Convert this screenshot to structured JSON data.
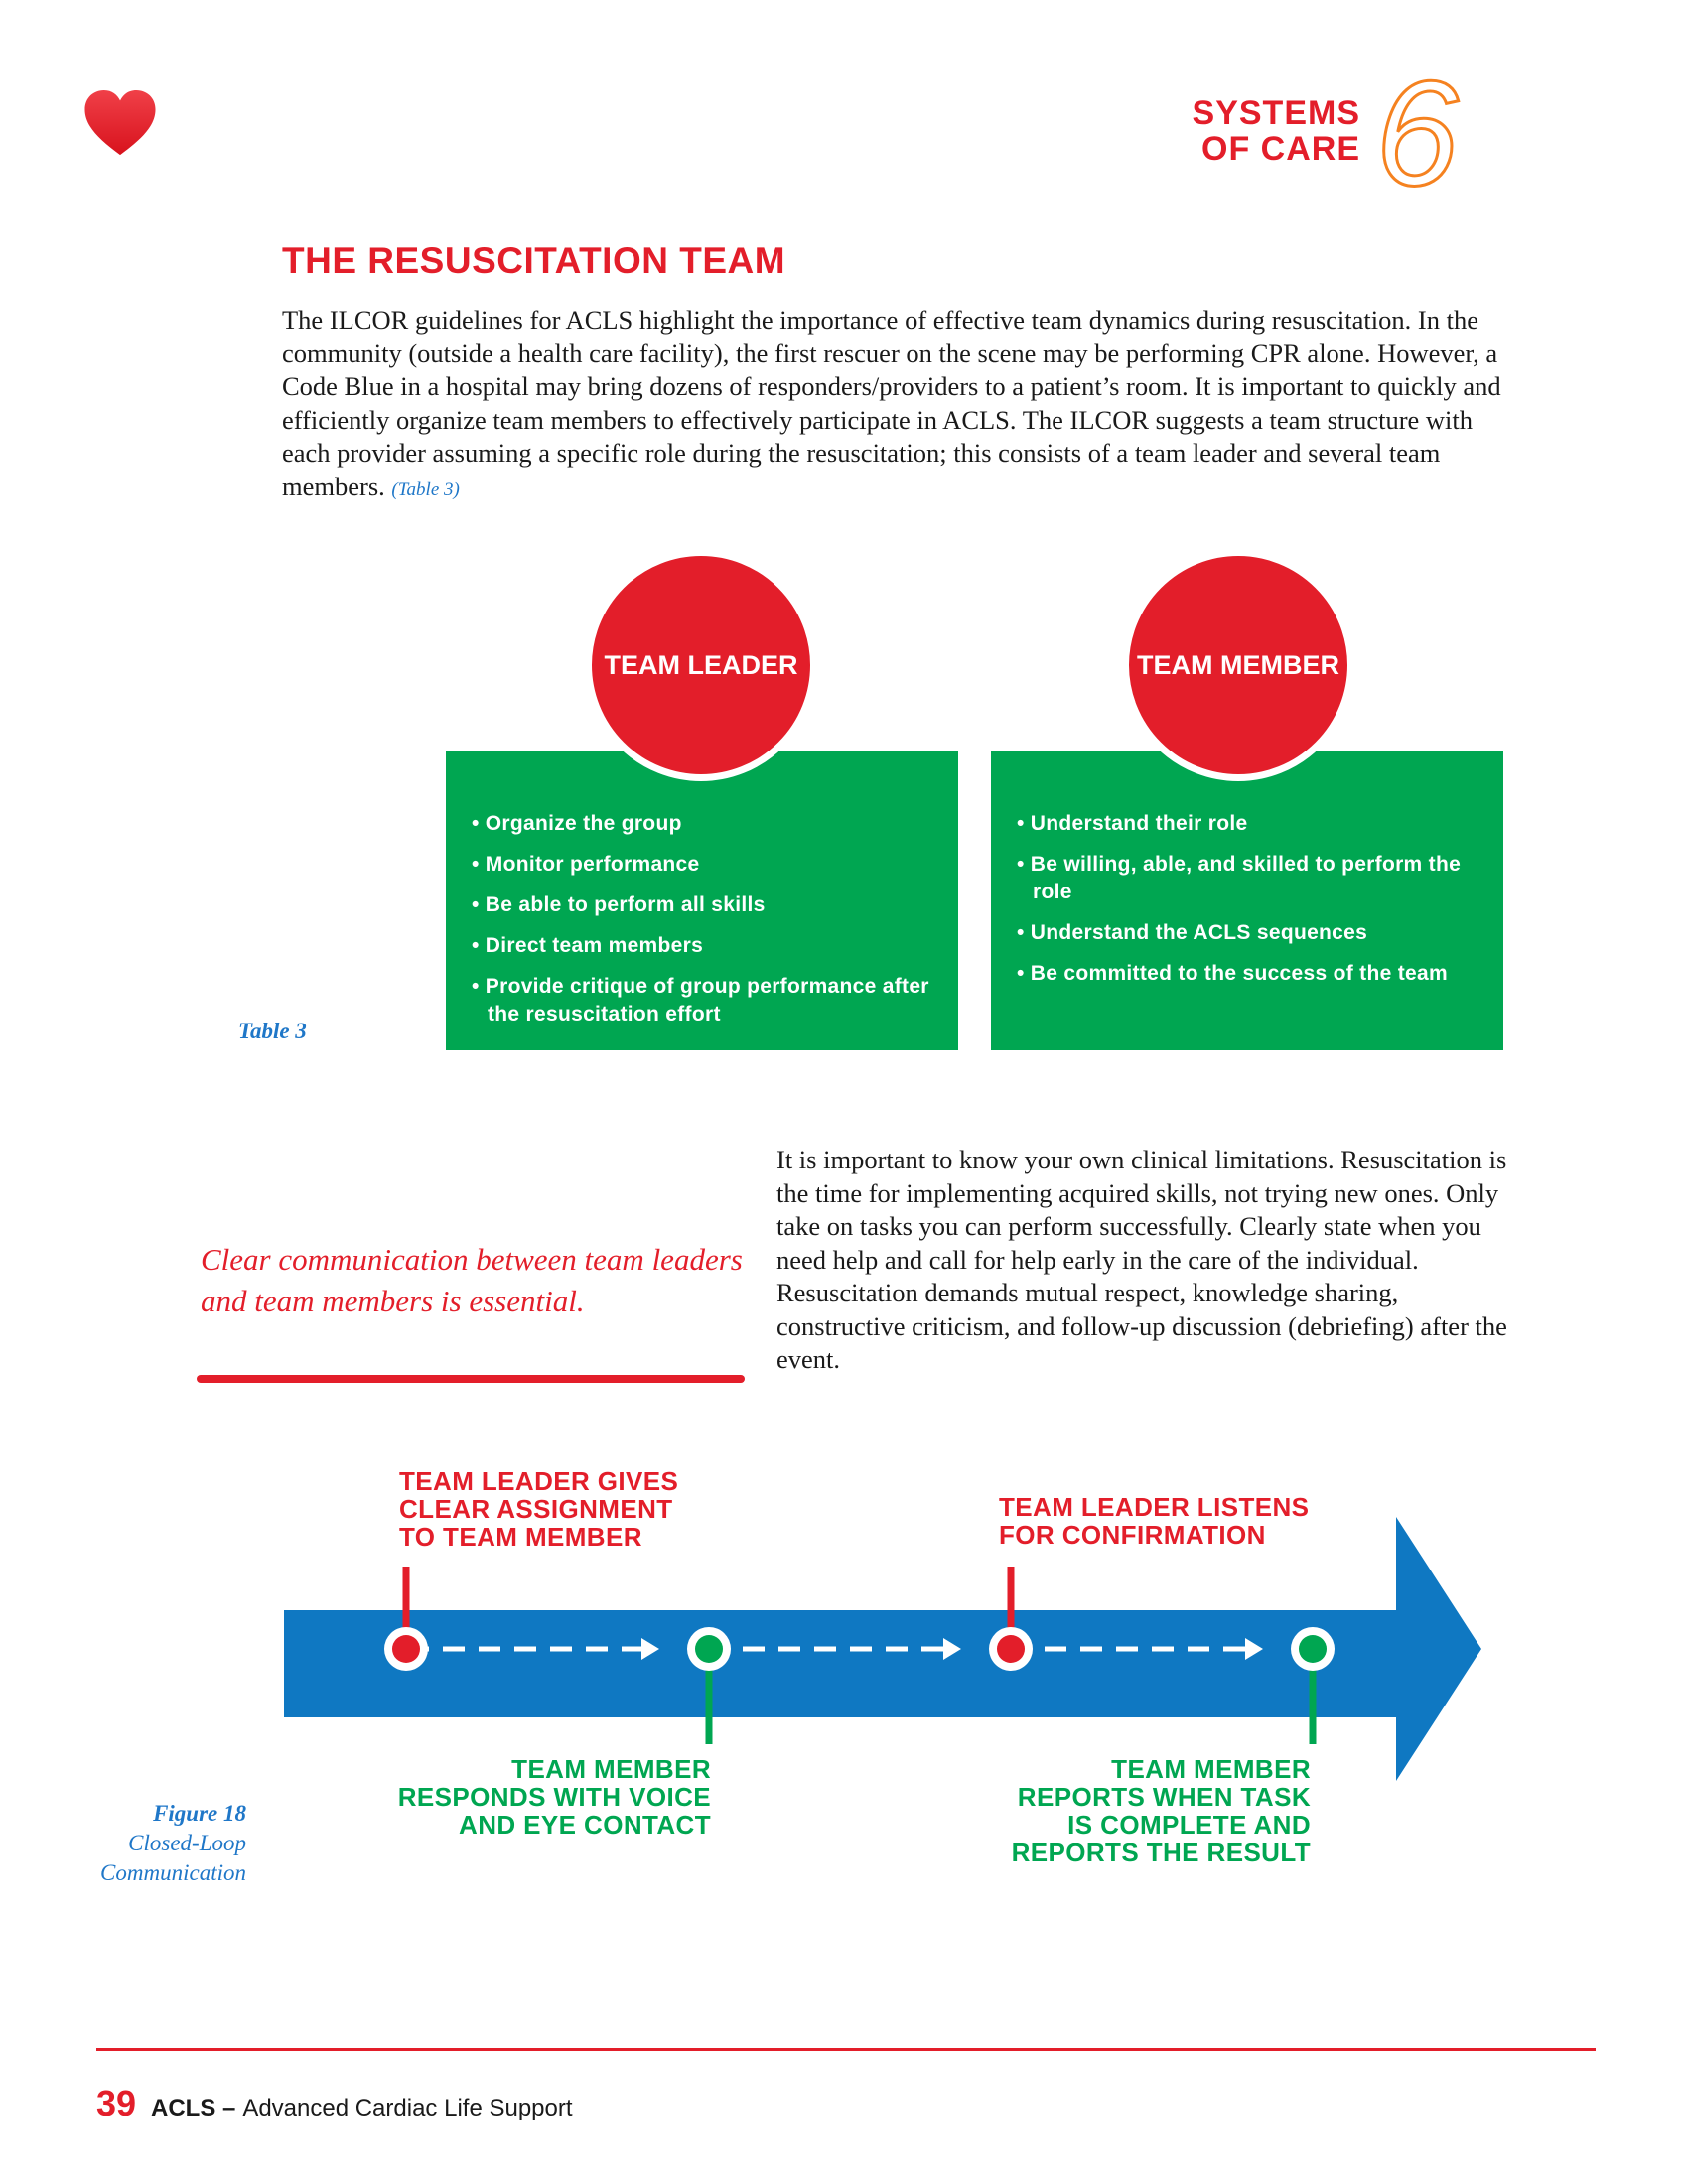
{
  "header": {
    "chapter_label_line1": "SYSTEMS",
    "chapter_label_line2": "OF CARE",
    "chapter_number": "6",
    "logo_icon": "heart-icon"
  },
  "section": {
    "title": "THE RESUSCITATION TEAM",
    "intro_text": "The ILCOR guidelines for ACLS highlight the importance of effective team dynamics during resuscitation. In the community (outside a health care facility), the first rescuer on the scene may be performing CPR alone. However, a Code Blue in a hospital may bring dozens of responders/providers to a patient’s room. It is important to quickly and efficiently organize team members to effectively participate in ACLS. The ILCOR suggests a team structure with each provider assuming a specific role during the resuscitation; this consists of a team leader and several team members.",
    "intro_ref": "(Table 3)"
  },
  "table3": {
    "caption": "Table 3",
    "leader": {
      "title": "TEAM LEADER",
      "items": [
        "• Organize the group",
        "• Monitor performance",
        "• Be able to perform all skills",
        "• Direct team members",
        "• Provide critique of group performance after the resuscitation effort"
      ]
    },
    "member": {
      "title": "TEAM MEMBER",
      "items": [
        "• Understand their role",
        "• Be willing, able, and skilled to perform the role",
        "• Understand the ACLS sequences",
        "• Be committed to the success of the team"
      ]
    }
  },
  "pull_quote": "Clear communication between team leaders and team members is essential.",
  "body_text_2": "It is important to know your own clinical limitations. Resuscitation is the time for implementing acquired skills, not trying new ones. Only take on tasks you can perform successfully. Clearly state when you need help and call for help early in the care of the individual. Resuscitation demands mutual respect, knowledge sharing, constructive criticism, and follow-up discussion (debriefing) after the event.",
  "figure18": {
    "caption_number": "Figure 18",
    "caption_line1": "Closed-Loop",
    "caption_line2": "Communication",
    "steps": {
      "step1": [
        "TEAM LEADER GIVES",
        "CLEAR ASSIGNMENT",
        "TO TEAM MEMBER"
      ],
      "step2": [
        "TEAM MEMBER",
        "RESPONDS WITH VOICE",
        "AND EYE CONTACT"
      ],
      "step3": [
        "TEAM LEADER LISTENS",
        "FOR CONFIRMATION"
      ],
      "step4": [
        "TEAM MEMBER",
        "REPORTS WHEN TASK",
        "IS COMPLETE AND",
        "REPORTS THE RESULT"
      ]
    }
  },
  "footer": {
    "page_number": "39",
    "book_short": "ACLS –",
    "book_title": "Advanced Cardiac Life Support"
  },
  "colors": {
    "red": "#e31e2a",
    "green": "#00a651",
    "blue": "#0f78c2",
    "orange": "#f58220",
    "caption_blue": "#1f77c8"
  }
}
